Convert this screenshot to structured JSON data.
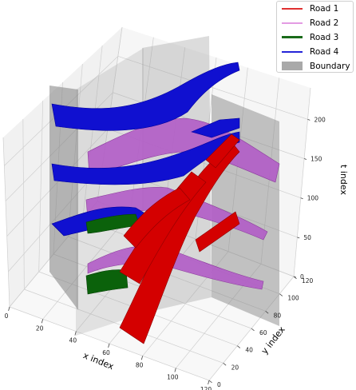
{
  "chart_data": {
    "type": "3d-surface",
    "title": "",
    "xlabel": "x index",
    "ylabel": "y index",
    "zlabel": "t index",
    "x_ticks": [
      "0",
      "20",
      "40",
      "60",
      "80",
      "100",
      "120"
    ],
    "y_ticks": [
      "0",
      "20",
      "40",
      "60",
      "80",
      "100",
      "120"
    ],
    "z_ticks": [
      "0",
      "50",
      "100",
      "150",
      "200"
    ],
    "xlim": [
      0,
      120
    ],
    "ylim": [
      0,
      120
    ],
    "zlim": [
      0,
      240
    ],
    "grid": true,
    "legend_position": "top-right",
    "legend": [
      {
        "label": "Road 1",
        "color": "#e03030",
        "kind": "line"
      },
      {
        "label": "Road 2",
        "color": "#e39be3",
        "kind": "line"
      },
      {
        "label": "Road 3",
        "color": "#1a6b1a",
        "kind": "line-thick"
      },
      {
        "label": "Road 4",
        "color": "#2424d8",
        "kind": "line"
      },
      {
        "label": "Boundary",
        "color": "#a9a9a9",
        "kind": "patch"
      }
    ],
    "series": [
      {
        "name": "Road 1",
        "color": "#d00000",
        "description_layers_t": [
          20,
          75,
          140,
          200
        ]
      },
      {
        "name": "Road 2",
        "color": "#b355b3",
        "description_layers_t": [
          40,
          100,
          170
        ]
      },
      {
        "name": "Road 3",
        "color": "#0a5a0a",
        "description_layers_t": [
          10,
          85
        ]
      },
      {
        "name": "Road 4",
        "color": "#0000c8",
        "description_layers_t": [
          60,
          120,
          175,
          235
        ]
      }
    ]
  }
}
